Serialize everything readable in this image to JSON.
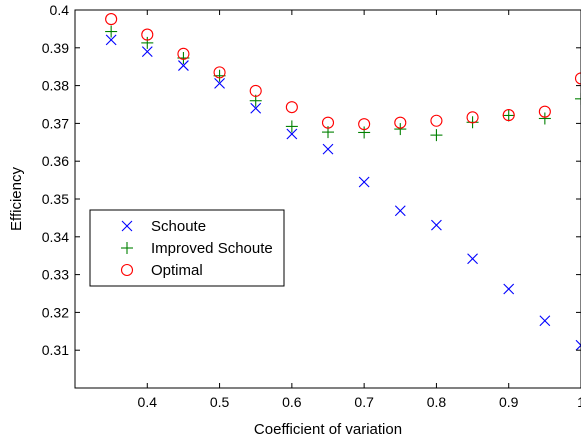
{
  "chart_data": {
    "type": "scatter",
    "title": "",
    "xlabel": "Coefficient of variation",
    "ylabel": "Efficiency",
    "xlim": [
      0.3,
      1.0
    ],
    "ylim": [
      0.3,
      0.4
    ],
    "xticks": [
      "0.4",
      "0.5",
      "0.6",
      "0.7",
      "0.8",
      "0.9",
      "1"
    ],
    "yticks": [
      "0.31",
      "0.32",
      "0.33",
      "0.34",
      "0.35",
      "0.36",
      "0.37",
      "0.38",
      "0.39",
      "0.4"
    ],
    "grid": false,
    "legend_position": "center-left",
    "x": [
      0.35,
      0.4,
      0.45,
      0.5,
      0.55,
      0.6,
      0.65,
      0.7,
      0.75,
      0.8,
      0.85,
      0.9,
      0.95,
      1.0
    ],
    "series": [
      {
        "name": "Schoute",
        "marker": "x",
        "color": "#0000ff",
        "values": [
          0.3921,
          0.389,
          0.3853,
          0.3806,
          0.374,
          0.3672,
          0.3632,
          0.3545,
          0.3469,
          0.3431,
          0.3342,
          0.3262,
          0.3178,
          0.3113
        ]
      },
      {
        "name": "Improved Schoute",
        "marker": "+",
        "color": "#008000",
        "values": [
          0.3943,
          0.3913,
          0.3873,
          0.3826,
          0.376,
          0.3692,
          0.3677,
          0.3676,
          0.3685,
          0.3669,
          0.3703,
          0.3721,
          0.3713,
          0.3765
        ]
      },
      {
        "name": "Optimal",
        "marker": "o",
        "color": "#ff0000",
        "values": [
          0.3976,
          0.3935,
          0.3884,
          0.3835,
          0.3786,
          0.3743,
          0.3702,
          0.3698,
          0.3702,
          0.3707,
          0.3716,
          0.3722,
          0.3731,
          0.3819
        ]
      }
    ]
  }
}
